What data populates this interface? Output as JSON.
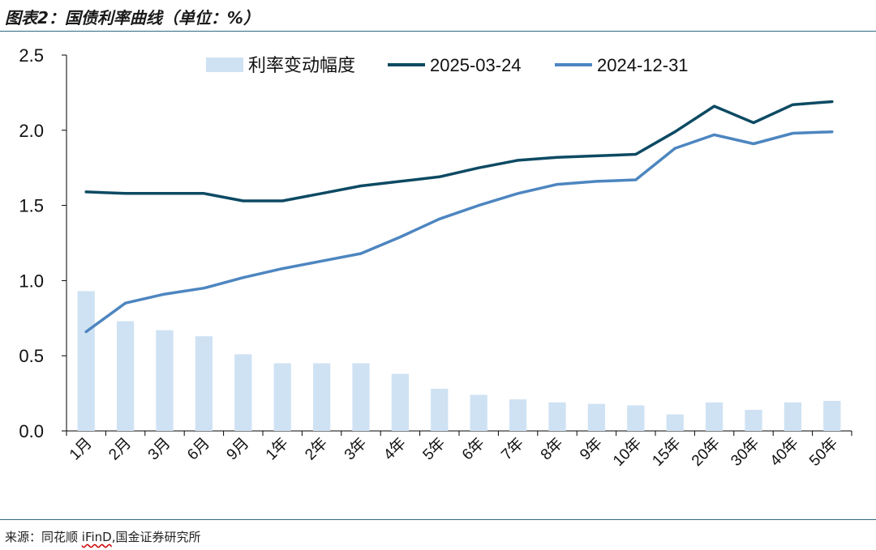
{
  "header": {
    "title": "图表2：国债利率曲线（单位：%）"
  },
  "source": {
    "prefix": "来源：同花顺 ",
    "ifind": "iFinD",
    "suffix": ",国金证券研究所"
  },
  "chart_data": {
    "type": "bar+line",
    "categories": [
      "1月",
      "2月",
      "3月",
      "6月",
      "9月",
      "1年",
      "2年",
      "3年",
      "4年",
      "5年",
      "6年",
      "7年",
      "8年",
      "9年",
      "10年",
      "15年",
      "20年",
      "30年",
      "40年",
      "50年"
    ],
    "ylim": [
      0,
      2.5
    ],
    "yticks": [
      "0.0",
      "0.5",
      "1.0",
      "1.5",
      "2.0",
      "2.5"
    ],
    "legend_position": "top",
    "series": [
      {
        "name": "利率变动幅度",
        "kind": "bar",
        "color": "#cfe2f3",
        "values": [
          0.93,
          0.73,
          0.67,
          0.63,
          0.51,
          0.45,
          0.45,
          0.45,
          0.38,
          0.28,
          0.24,
          0.21,
          0.19,
          0.18,
          0.17,
          0.11,
          0.19,
          0.14,
          0.19,
          0.2
        ]
      },
      {
        "name": "2025-03-24",
        "kind": "line",
        "color": "#0d4a63",
        "values": [
          1.59,
          1.58,
          1.58,
          1.58,
          1.53,
          1.53,
          1.58,
          1.63,
          1.66,
          1.69,
          1.75,
          1.8,
          1.82,
          1.83,
          1.84,
          1.99,
          2.16,
          2.05,
          2.17,
          2.19
        ]
      },
      {
        "name": "2024-12-31",
        "kind": "line",
        "color": "#4d86c0",
        "values": [
          0.66,
          0.85,
          0.91,
          0.95,
          1.02,
          1.08,
          1.13,
          1.18,
          1.29,
          1.41,
          1.5,
          1.58,
          1.64,
          1.66,
          1.67,
          1.88,
          1.97,
          1.91,
          1.98,
          1.99
        ]
      }
    ]
  }
}
